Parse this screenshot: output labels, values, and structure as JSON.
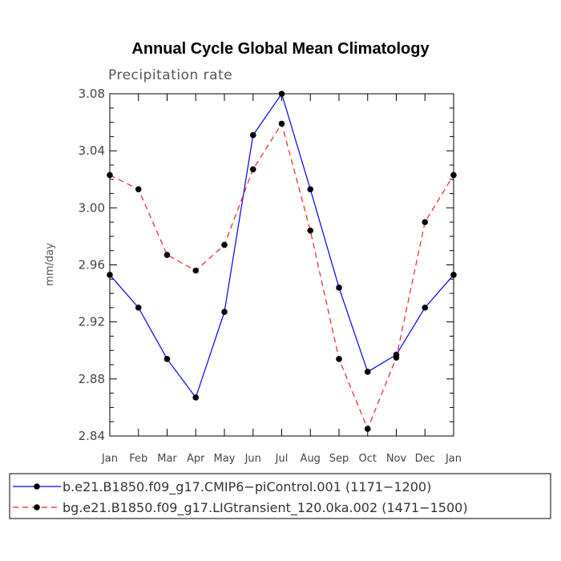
{
  "chart_data": {
    "type": "line",
    "title": "Annual Cycle Global Mean Climatology",
    "subtitle": "Precipitation rate",
    "xlabel": "",
    "ylabel": "mm/day",
    "categories": [
      "Jan",
      "Feb",
      "Mar",
      "Apr",
      "May",
      "Jun",
      "Jul",
      "Aug",
      "Sep",
      "Oct",
      "Nov",
      "Dec",
      "Jan"
    ],
    "ylim": [
      2.84,
      3.08
    ],
    "yticks": [
      "2.84",
      "2.88",
      "2.92",
      "2.96",
      "3.00",
      "3.04",
      "3.08"
    ],
    "grid": false,
    "legend_position": "bottom",
    "series": [
      {
        "name": "b.e21.B1850.f09_g17.CMIP6−piControl.001 (1171−1200)",
        "color": "#0000ee",
        "line_style": "solid",
        "values": [
          2.953,
          2.93,
          2.894,
          2.867,
          2.927,
          3.051,
          3.08,
          3.013,
          2.944,
          2.885,
          2.897,
          2.93,
          2.953
        ]
      },
      {
        "name": "bg.e21.B1850.f09_g17.LIGtransient_120.0ka.002 (1471−1500)",
        "color": "#ee2020",
        "line_style": "dashed",
        "values": [
          3.023,
          3.013,
          2.967,
          2.956,
          2.974,
          3.027,
          3.059,
          2.984,
          2.894,
          2.845,
          2.895,
          2.99,
          3.023
        ]
      }
    ]
  }
}
